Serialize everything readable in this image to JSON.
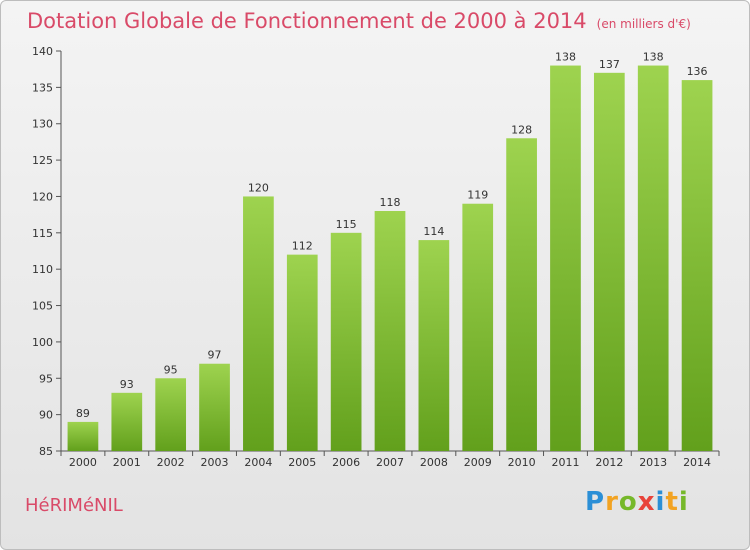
{
  "chart_data": {
    "type": "bar",
    "title": "Dotation Globale de Fonctionnement de 2000 à 2014",
    "subtitle": "(en milliers d'€)",
    "categories": [
      "2000",
      "2001",
      "2002",
      "2003",
      "2004",
      "2005",
      "2006",
      "2007",
      "2008",
      "2009",
      "2010",
      "2011",
      "2012",
      "2013",
      "2014"
    ],
    "values": [
      89,
      93,
      95,
      97,
      120,
      112,
      115,
      118,
      114,
      119,
      128,
      138,
      137,
      138,
      136
    ],
    "ylim": [
      85,
      140
    ],
    "yticks": [
      85,
      90,
      95,
      100,
      105,
      110,
      115,
      120,
      125,
      130,
      135,
      140
    ],
    "grid": false,
    "xlabel": "",
    "ylabel": "",
    "bar_color": "#8cc63f",
    "bar_color_dark": "#62a01c"
  },
  "place_name": "HéRIMéNIL",
  "logo": {
    "p": "P",
    "r": "r",
    "o": "o",
    "x": "x",
    "i1": "i",
    "t": "t",
    "i2": "i"
  }
}
